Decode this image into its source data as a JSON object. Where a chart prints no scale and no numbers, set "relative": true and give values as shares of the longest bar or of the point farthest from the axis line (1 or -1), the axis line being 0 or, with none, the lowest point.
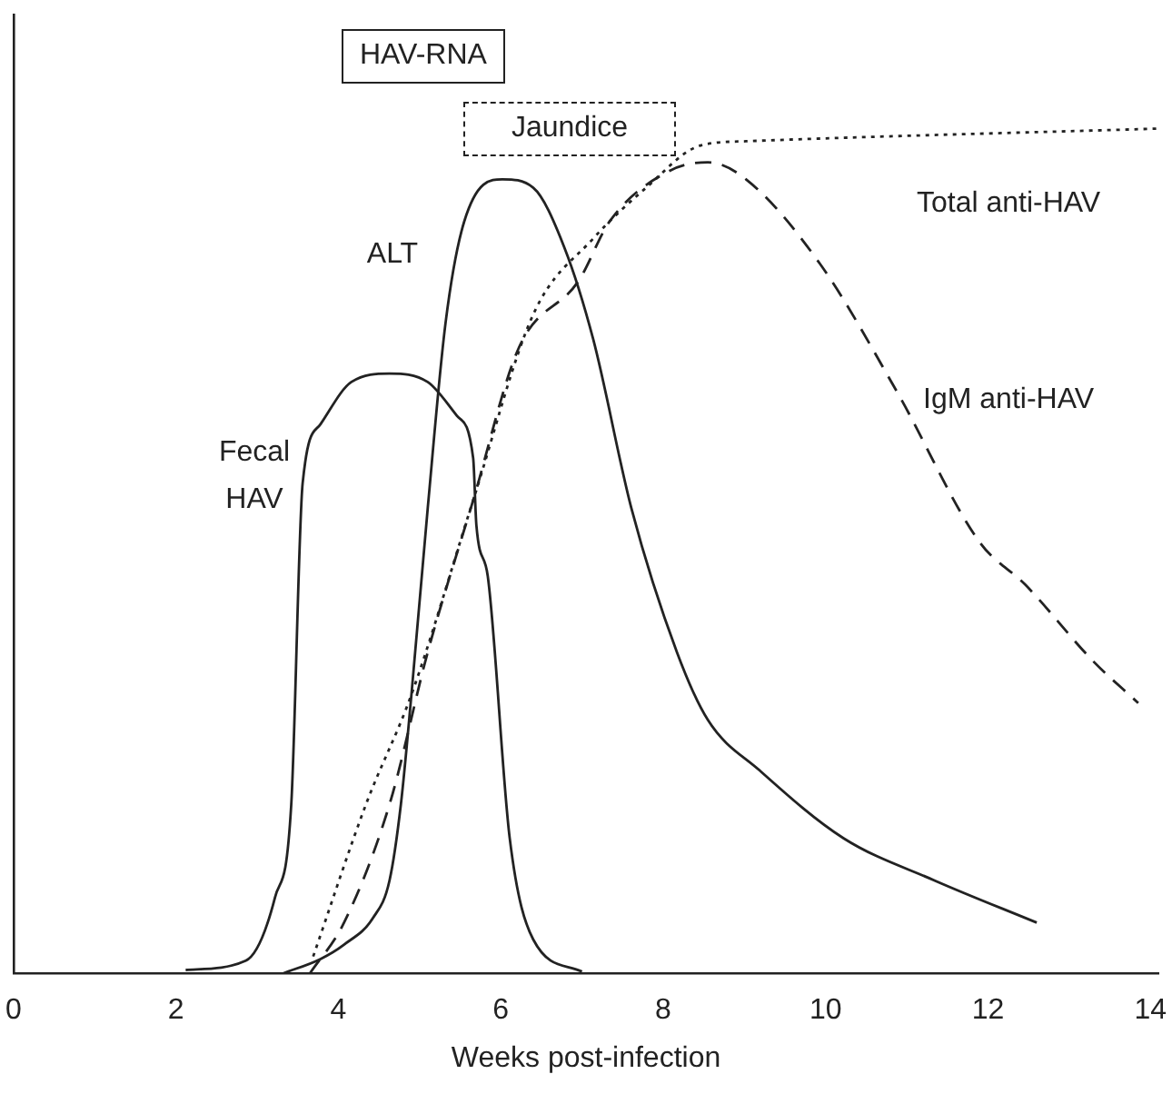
{
  "chart_data": {
    "type": "line",
    "xlabel": "Weeks post-infection",
    "relative": true,
    "xlim": [
      0,
      14.1
    ],
    "xticks": [
      0,
      2,
      4,
      6,
      8,
      10,
      12,
      14
    ],
    "grid": false,
    "legend": false,
    "marker": "none",
    "annotations": [
      "HAV-RNA",
      "Jaundice"
    ],
    "series": [
      {
        "name": "Fecal HAV",
        "color": "#222222",
        "line_style": "solid",
        "x": [
          2.12,
          2.86,
          3.22,
          3.42,
          3.56,
          3.78,
          4.16,
          4.63,
          5.1,
          5.46,
          5.66,
          5.7,
          5.84,
          6.11,
          6.4,
          7.0
        ],
        "values": [
          0.004,
          0.015,
          0.09,
          0.2,
          0.58,
          0.65,
          0.7,
          0.71,
          0.7,
          0.66,
          0.61,
          0.53,
          0.47,
          0.16,
          0.04,
          0.002
        ]
      },
      {
        "name": "ALT",
        "color": "#222222",
        "line_style": "solid",
        "x": [
          3.32,
          3.78,
          4.07,
          4.43,
          4.63,
          4.77,
          4.9,
          5.1,
          5.32,
          5.55,
          6.02,
          6.4,
          6.78,
          7.14,
          7.61,
          8.17,
          8.55,
          9.19,
          10.22,
          11.34,
          12.6
        ],
        "values": [
          0,
          0.017,
          0.034,
          0.066,
          0.11,
          0.2,
          0.33,
          0.55,
          0.77,
          0.89,
          0.94,
          0.93,
          0.86,
          0.75,
          0.55,
          0.38,
          0.3,
          0.24,
          0.16,
          0.11,
          0.06
        ]
      },
      {
        "name": "Total anti-HAV",
        "color": "#222222",
        "line_style": "dotted",
        "x": [
          3.69,
          4.34,
          4.9,
          5.66,
          6.4,
          7.14,
          7.79,
          8.46,
          9.02,
          14.1
        ],
        "values": [
          0.02,
          0.2,
          0.33,
          0.56,
          0.78,
          0.87,
          0.93,
          0.98,
          0.985,
          1.0
        ]
      },
      {
        "name": "IgM anti-HAV",
        "color": "#222222",
        "line_style": "dashed",
        "x": [
          3.65,
          4.07,
          4.63,
          5.1,
          5.66,
          6.22,
          6.96,
          7.34,
          8.08,
          8.55,
          9.02,
          9.93,
          10.87,
          11.9,
          12.46,
          13.29,
          13.85
        ],
        "values": [
          0,
          0.06,
          0.2,
          0.38,
          0.56,
          0.74,
          0.82,
          0.89,
          0.95,
          0.96,
          0.94,
          0.84,
          0.69,
          0.51,
          0.46,
          0.37,
          0.32
        ]
      }
    ]
  }
}
